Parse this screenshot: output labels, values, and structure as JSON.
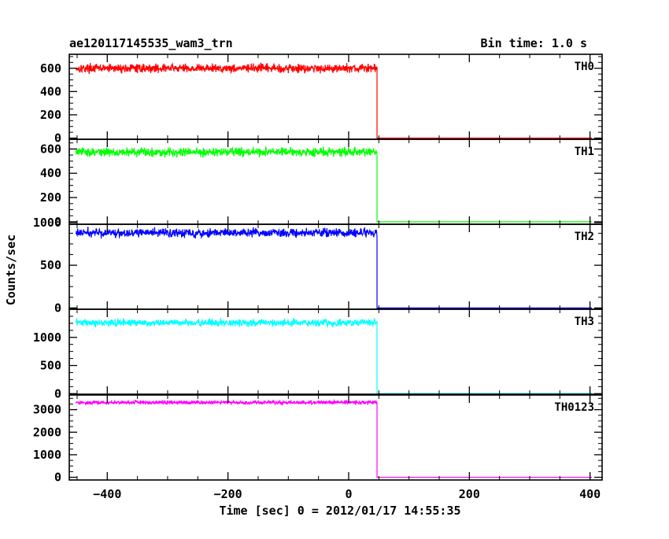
{
  "chart_data": {
    "type": "line",
    "title": "ae120117145535_wam3_trn",
    "bin_time_label": "Bin time: 1.0 s",
    "xlabel": "Time [sec] 0 = 2012/01/17 14:55:35",
    "ylabel": "Counts/sec",
    "xlim": [
      -463,
      420
    ],
    "x_ticks": [
      -400,
      -200,
      0,
      200,
      400
    ],
    "x_tick_labels": [
      "−400",
      "−200",
      "0",
      "200",
      "400"
    ],
    "x_data_range": [
      -452,
      403
    ],
    "step_time": 47,
    "grid": false,
    "panels": [
      {
        "name": "TH0",
        "color": "#ff0000",
        "ylim": [
          -10,
          720
        ],
        "yticks": [
          0,
          200,
          400,
          600
        ],
        "ytick_labels": [
          "0",
          "200",
          "400",
          "600"
        ],
        "pre_level": 600,
        "noise": 40,
        "post_level": 0
      },
      {
        "name": "TH1",
        "color": "#00ff00",
        "ylim": [
          -20,
          680
        ],
        "yticks": [
          0,
          200,
          400,
          600
        ],
        "ytick_labels": [
          "0",
          "200",
          "400",
          "600"
        ],
        "pre_level": 575,
        "noise": 40,
        "post_level": 0
      },
      {
        "name": "TH2",
        "color": "#0000ff",
        "ylim": [
          -15,
          980
        ],
        "yticks": [
          0,
          500,
          1000
        ],
        "ytick_labels": [
          "0",
          "500",
          "1000"
        ],
        "pre_level": 880,
        "noise": 55,
        "post_level": 0
      },
      {
        "name": "TH3",
        "color": "#00ffff",
        "ylim": [
          -10,
          1500
        ],
        "yticks": [
          0,
          500,
          1000
        ],
        "ytick_labels": [
          "0",
          "500",
          "1000"
        ],
        "pre_level": 1260,
        "noise": 70,
        "post_level": 0
      },
      {
        "name": "TH0123",
        "color": "#ff00ff",
        "ylim": [
          -120,
          3650
        ],
        "yticks": [
          0,
          1000,
          2000,
          3000
        ],
        "ytick_labels": [
          "0",
          "1000",
          "2000",
          "3000"
        ],
        "pre_level": 3320,
        "noise": 90,
        "post_level": 0
      }
    ]
  }
}
